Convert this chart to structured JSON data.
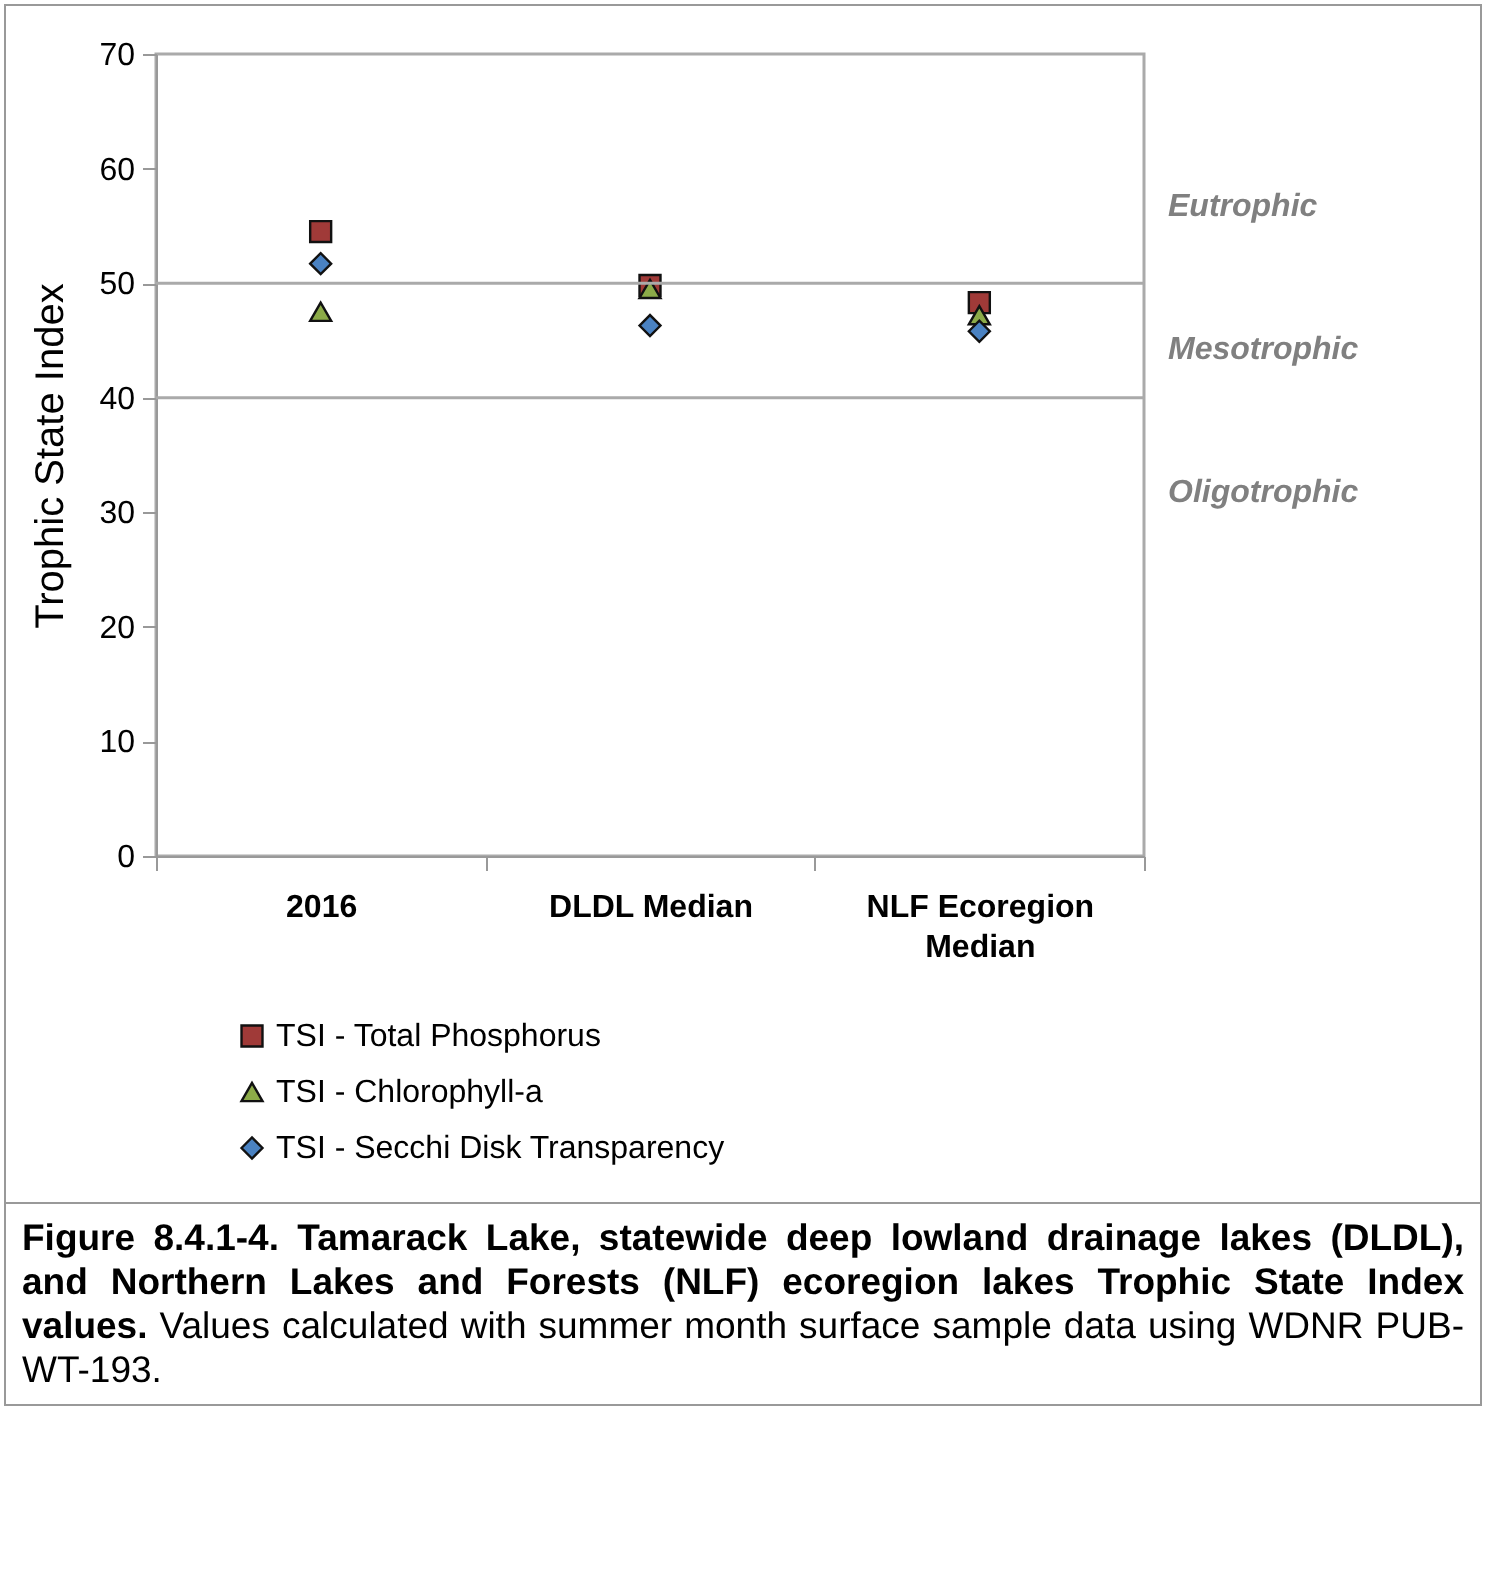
{
  "chart_data": {
    "type": "scatter",
    "title": "Figure 8.4.1-4.  Tamarack Lake, statewide deep lowland drainage lakes (DLDL), and Northern Lakes and Forests (NLF) ecoregion lakes Trophic State Index values.",
    "subtitle": "Values calculated with summer month surface sample data using WDNR PUB-WT-193.",
    "ylabel": "Trophic State Index",
    "categories": [
      "2016",
      "DLDL Median",
      "NLF Ecoregion Median"
    ],
    "series": [
      {
        "name": "TSI - Total Phosphorus",
        "color": "#a03a38",
        "marker": "square",
        "values": [
          54.5,
          49.8,
          48.3
        ]
      },
      {
        "name": "TSI - Chlorophyll-a",
        "color": "#8cab48",
        "marker": "triangle",
        "values": [
          47.5,
          49.5,
          47.2
        ]
      },
      {
        "name": "TSI - Secchi Disk Transparency",
        "color": "#4a82c2",
        "marker": "diamond",
        "values": [
          51.7,
          46.3,
          45.8
        ]
      }
    ],
    "ylim": [
      0,
      70
    ],
    "yticks": [
      0,
      10,
      20,
      30,
      40,
      50,
      60,
      70
    ],
    "ref_lines": [
      {
        "axis": "y",
        "value": 50
      },
      {
        "axis": "y",
        "value": 40
      }
    ],
    "annotations": [
      "Eutrophic",
      "Mesotrophic",
      "Oligotrophic"
    ],
    "legend": "bottom",
    "grid": false
  }
}
